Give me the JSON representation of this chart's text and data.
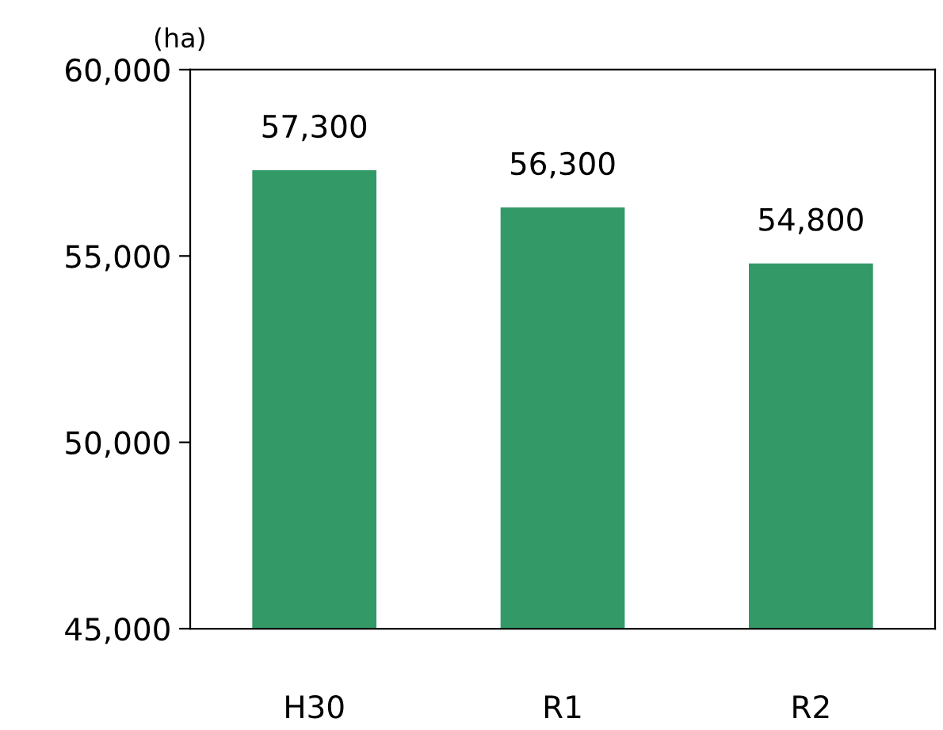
{
  "chart_data": {
    "type": "bar",
    "ylabel": "(ha)",
    "categories": [
      "H30",
      "R1",
      "R2"
    ],
    "values": [
      57300,
      56300,
      54800
    ],
    "color": "#339966",
    "ylim": [
      45000,
      60000
    ],
    "yticks": [
      {
        "value": 45000,
        "label": "45,000"
      },
      {
        "value": 50000,
        "label": "50,000"
      },
      {
        "value": 55000,
        "label": "55,000"
      },
      {
        "value": 60000,
        "label": "60,000"
      }
    ],
    "value_labels": [
      "57,300",
      "56,300",
      "54,800"
    ],
    "grid": false,
    "legend": false
  }
}
